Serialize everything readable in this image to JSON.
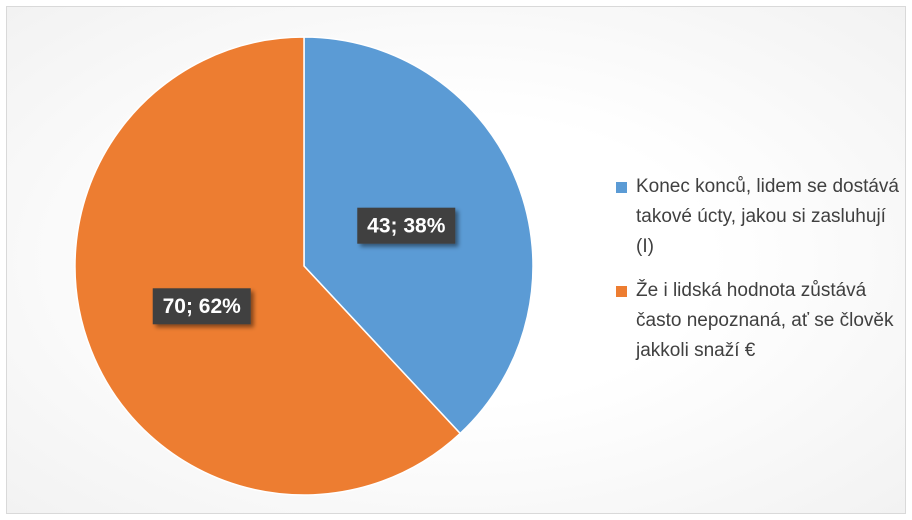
{
  "chart_data": {
    "type": "pie",
    "categories": [
      "Konec konců, lidem se dostává takové úcty, jakou si zasluhují (I)",
      "Že i lidská hodnota zůstává často nepoznaná, ať se člověk jakkoli snaží €"
    ],
    "values": [
      43,
      70
    ],
    "value_labels": [
      "43; 38%",
      "70; 62%"
    ],
    "colors": [
      "#5b9bd5",
      "#ed7d31"
    ],
    "legend": "right"
  }
}
